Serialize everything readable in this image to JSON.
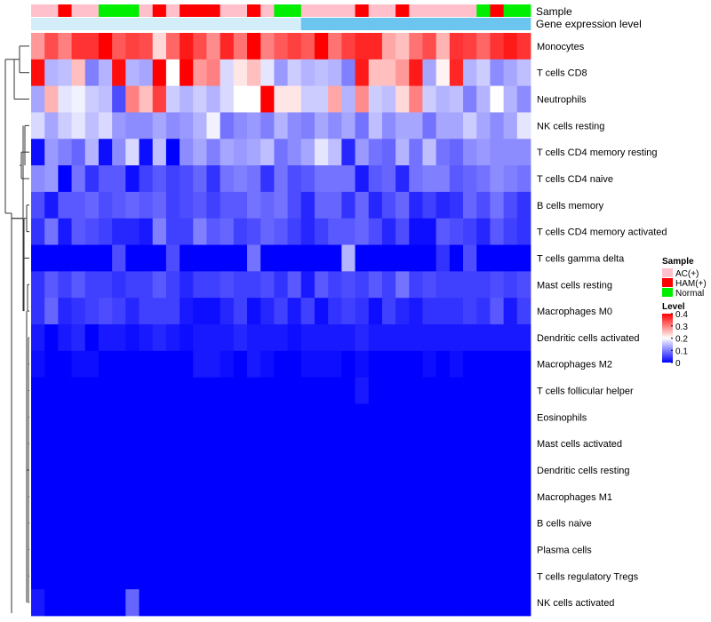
{
  "chart_data": {
    "type": "heatmap",
    "title": "",
    "annotation_tracks": [
      "Sample",
      "Gene expression level"
    ],
    "sample_groups": [
      {
        "name": "AC(+)",
        "color": "#FFC0CB"
      },
      {
        "name": "HAM(+)",
        "color": "#FF0000"
      },
      {
        "name": "Normal",
        "color": "#00EE00"
      }
    ],
    "sample_annotation": [
      0,
      0,
      1,
      0,
      0,
      2,
      2,
      2,
      0,
      1,
      0,
      1,
      1,
      1,
      0,
      0,
      1,
      0,
      2,
      2,
      0,
      0,
      0,
      0,
      1,
      0,
      0,
      1,
      0,
      0,
      0,
      0,
      0,
      2,
      1,
      2,
      2
    ],
    "gene_expression_level": [
      0,
      0,
      0,
      0,
      0,
      0,
      0,
      0,
      0,
      0,
      0,
      0,
      0,
      0,
      0,
      0,
      0,
      0,
      0,
      0,
      1,
      1,
      1,
      1,
      1,
      1,
      1,
      1,
      1,
      1,
      1,
      1,
      1,
      1,
      1,
      1,
      1
    ],
    "gene_expression_colors": [
      "#D4EEF9",
      "#6CC5EE"
    ],
    "rows": [
      "Monocytes",
      "T cells CD8",
      "Neutrophils",
      "NK cells resting",
      "T cells CD4 memory resting",
      "T cells CD4 naive",
      "B cells memory",
      "T cells CD4 memory activated",
      "T cells gamma delta",
      "Mast cells resting",
      "Macrophages M0",
      "Dendritic cells activated",
      "Macrophages M2",
      "T cells follicular helper",
      "Eosinophils",
      "Mast cells activated",
      "Dendritic cells resting",
      "Macrophages M1",
      "B cells naive",
      "Plasma cells",
      "T cells regulatory  Tregs",
      "NK cells activated"
    ],
    "values": [
      [
        0.28,
        0.34,
        0.3,
        0.36,
        0.36,
        0.4,
        0.33,
        0.35,
        0.34,
        0.23,
        0.32,
        0.38,
        0.34,
        0.29,
        0.37,
        0.31,
        0.4,
        0.3,
        0.33,
        0.35,
        0.33,
        0.41,
        0.31,
        0.35,
        0.37,
        0.37,
        0.27,
        0.25,
        0.31,
        0.34,
        0.26,
        0.36,
        0.35,
        0.32,
        0.36,
        0.38,
        0.36
      ],
      [
        0.39,
        0.14,
        0.15,
        0.25,
        0.1,
        0.14,
        0.39,
        0.14,
        0.13,
        0.41,
        0.2,
        0.4,
        0.28,
        0.3,
        0.17,
        0.22,
        0.25,
        0.18,
        0.12,
        0.16,
        0.14,
        0.15,
        0.14,
        0.1,
        0.38,
        0.25,
        0.25,
        0.28,
        0.38,
        0.13,
        0.21,
        0.37,
        0.14,
        0.16,
        0.11,
        0.13,
        0.15
      ],
      [
        0.13,
        0.26,
        0.18,
        0.19,
        0.16,
        0.15,
        0.06,
        0.3,
        0.25,
        0.35,
        0.16,
        0.14,
        0.16,
        0.14,
        0.17,
        0.2,
        0.2,
        0.42,
        0.22,
        0.22,
        0.16,
        0.16,
        0.27,
        0.14,
        0.29,
        0.16,
        0.15,
        0.23,
        0.3,
        0.16,
        0.14,
        0.15,
        0.1,
        0.14,
        0.2,
        0.14,
        0.11
      ],
      [
        0.17,
        0.13,
        0.16,
        0.18,
        0.15,
        0.17,
        0.12,
        0.11,
        0.11,
        0.13,
        0.11,
        0.12,
        0.14,
        0.19,
        0.09,
        0.11,
        0.12,
        0.1,
        0.14,
        0.11,
        0.1,
        0.13,
        0.11,
        0.13,
        0.09,
        0.15,
        0.11,
        0.13,
        0.13,
        0.09,
        0.13,
        0.13,
        0.16,
        0.13,
        0.11,
        0.13,
        0.18
      ],
      [
        0.01,
        0.12,
        0.1,
        0.08,
        0.14,
        0.01,
        0.11,
        0.17,
        0.01,
        0.15,
        0.0,
        0.11,
        0.13,
        0.1,
        0.13,
        0.12,
        0.13,
        0.15,
        0.09,
        0.11,
        0.13,
        0.18,
        0.15,
        0.03,
        0.12,
        0.09,
        0.08,
        0.14,
        0.09,
        0.15,
        0.09,
        0.08,
        0.11,
        0.12,
        0.11,
        0.11,
        0.11
      ],
      [
        0.11,
        0.12,
        0.0,
        0.09,
        0.04,
        0.07,
        0.07,
        0.01,
        0.05,
        0.07,
        0.05,
        0.06,
        0.08,
        0.04,
        0.09,
        0.1,
        0.09,
        0.04,
        0.09,
        0.06,
        0.07,
        0.09,
        0.09,
        0.09,
        0.02,
        0.07,
        0.08,
        0.03,
        0.09,
        0.1,
        0.1,
        0.07,
        0.08,
        0.09,
        0.11,
        0.1,
        0.09
      ],
      [
        0.06,
        0.02,
        0.07,
        0.07,
        0.08,
        0.06,
        0.07,
        0.08,
        0.07,
        0.08,
        0.05,
        0.06,
        0.07,
        0.05,
        0.07,
        0.07,
        0.09,
        0.08,
        0.09,
        0.06,
        0.03,
        0.08,
        0.08,
        0.04,
        0.08,
        0.03,
        0.06,
        0.08,
        0.03,
        0.05,
        0.03,
        0.04,
        0.08,
        0.06,
        0.09,
        0.06,
        0.04
      ],
      [
        0.04,
        0.09,
        0.02,
        0.07,
        0.06,
        0.05,
        0.03,
        0.03,
        0.02,
        0.1,
        0.05,
        0.05,
        0.1,
        0.07,
        0.08,
        0.05,
        0.06,
        0.08,
        0.07,
        0.05,
        0.03,
        0.05,
        0.07,
        0.07,
        0.08,
        0.06,
        0.03,
        0.06,
        0.01,
        0.01,
        0.07,
        0.06,
        0.05,
        0.03,
        0.07,
        0.05,
        0.04
      ],
      [
        0.0,
        0.0,
        0.0,
        0.0,
        0.0,
        0.0,
        0.06,
        0.0,
        0.0,
        0.0,
        0.06,
        0.0,
        0.0,
        0.0,
        0.0,
        0.0,
        0.09,
        0.0,
        0.0,
        0.0,
        0.0,
        0.0,
        0.0,
        0.14,
        0.0,
        0.0,
        0.0,
        0.0,
        0.0,
        0.0,
        0.04,
        0.0,
        0.06,
        0.0,
        0.0,
        0.0,
        0.0
      ],
      [
        0.04,
        0.07,
        0.05,
        0.07,
        0.05,
        0.05,
        0.04,
        0.05,
        0.05,
        0.07,
        0.05,
        0.03,
        0.05,
        0.05,
        0.06,
        0.05,
        0.05,
        0.06,
        0.04,
        0.07,
        0.02,
        0.07,
        0.05,
        0.06,
        0.05,
        0.07,
        0.05,
        0.09,
        0.05,
        0.06,
        0.05,
        0.05,
        0.05,
        0.05,
        0.06,
        0.05,
        0.06
      ],
      [
        0.04,
        0.08,
        0.03,
        0.04,
        0.05,
        0.06,
        0.05,
        0.03,
        0.05,
        0.05,
        0.05,
        0.02,
        0.01,
        0.01,
        0.03,
        0.05,
        0.01,
        0.03,
        0.05,
        0.02,
        0.05,
        0.01,
        0.04,
        0.05,
        0.04,
        0.01,
        0.05,
        0.03,
        0.02,
        0.04,
        0.04,
        0.04,
        0.05,
        0.04,
        0.07,
        0.02,
        0.05
      ],
      [
        0.02,
        0.0,
        0.02,
        0.03,
        0.0,
        0.02,
        0.02,
        0.01,
        0.02,
        0.03,
        0.02,
        0.01,
        0.02,
        0.02,
        0.02,
        0.03,
        0.02,
        0.02,
        0.02,
        0.01,
        0.02,
        0.02,
        0.02,
        0.02,
        0.03,
        0.02,
        0.02,
        0.02,
        0.02,
        0.02,
        0.02,
        0.02,
        0.02,
        0.02,
        0.02,
        0.02,
        0.02
      ],
      [
        0.01,
        0.0,
        0.0,
        0.01,
        0.01,
        0.0,
        0.0,
        0.0,
        0.0,
        0.0,
        0.0,
        0.0,
        0.02,
        0.02,
        0.01,
        0.0,
        0.02,
        0.01,
        0.0,
        0.0,
        0.01,
        0.01,
        0.01,
        0.0,
        0.01,
        0.0,
        0.0,
        0.0,
        0.0,
        0.01,
        0.0,
        0.01,
        0.0,
        0.0,
        0.0,
        0.0,
        0.0
      ],
      [
        0.0,
        0.0,
        0.0,
        0.0,
        0.0,
        0.0,
        0.0,
        0.0,
        0.0,
        0.0,
        0.0,
        0.0,
        0.0,
        0.0,
        0.0,
        0.0,
        0.0,
        0.0,
        0.0,
        0.0,
        0.0,
        0.0,
        0.0,
        0.0,
        0.02,
        0.0,
        0.0,
        0.0,
        0.0,
        0.0,
        0.0,
        0.0,
        0.0,
        0.0,
        0.0,
        0.0,
        0.0
      ],
      [
        0.0,
        0.0,
        0.0,
        0.0,
        0.0,
        0.0,
        0.0,
        0.0,
        0.0,
        0.0,
        0.0,
        0.0,
        0.0,
        0.0,
        0.0,
        0.0,
        0.0,
        0.0,
        0.0,
        0.0,
        0.0,
        0.0,
        0.0,
        0.0,
        0.0,
        0.0,
        0.0,
        0.0,
        0.0,
        0.0,
        0.0,
        0.0,
        0.0,
        0.0,
        0.0,
        0.0,
        0.0
      ],
      [
        0.0,
        0.0,
        0.0,
        0.0,
        0.0,
        0.0,
        0.0,
        0.0,
        0.0,
        0.0,
        0.0,
        0.0,
        0.0,
        0.0,
        0.0,
        0.0,
        0.0,
        0.0,
        0.0,
        0.0,
        0.0,
        0.0,
        0.0,
        0.0,
        0.0,
        0.0,
        0.0,
        0.0,
        0.0,
        0.0,
        0.0,
        0.0,
        0.0,
        0.0,
        0.0,
        0.0,
        0.0
      ],
      [
        0.0,
        0.0,
        0.0,
        0.0,
        0.0,
        0.0,
        0.0,
        0.0,
        0.0,
        0.0,
        0.0,
        0.0,
        0.0,
        0.0,
        0.0,
        0.0,
        0.0,
        0.0,
        0.0,
        0.0,
        0.0,
        0.0,
        0.0,
        0.0,
        0.0,
        0.0,
        0.0,
        0.0,
        0.0,
        0.0,
        0.0,
        0.0,
        0.0,
        0.0,
        0.0,
        0.0,
        0.0
      ],
      [
        0.0,
        0.0,
        0.0,
        0.0,
        0.0,
        0.0,
        0.0,
        0.0,
        0.0,
        0.0,
        0.0,
        0.0,
        0.0,
        0.0,
        0.0,
        0.0,
        0.0,
        0.0,
        0.0,
        0.0,
        0.0,
        0.0,
        0.0,
        0.0,
        0.0,
        0.0,
        0.0,
        0.0,
        0.0,
        0.0,
        0.0,
        0.0,
        0.0,
        0.0,
        0.0,
        0.0,
        0.0
      ],
      [
        0.0,
        0.0,
        0.0,
        0.0,
        0.0,
        0.0,
        0.0,
        0.0,
        0.0,
        0.0,
        0.0,
        0.0,
        0.0,
        0.0,
        0.0,
        0.0,
        0.0,
        0.0,
        0.0,
        0.0,
        0.0,
        0.0,
        0.0,
        0.0,
        0.0,
        0.0,
        0.0,
        0.0,
        0.0,
        0.0,
        0.0,
        0.0,
        0.0,
        0.0,
        0.0,
        0.0,
        0.0
      ],
      [
        0.0,
        0.0,
        0.0,
        0.0,
        0.0,
        0.0,
        0.0,
        0.0,
        0.0,
        0.0,
        0.0,
        0.0,
        0.0,
        0.0,
        0.0,
        0.0,
        0.0,
        0.0,
        0.0,
        0.0,
        0.0,
        0.0,
        0.0,
        0.0,
        0.0,
        0.0,
        0.0,
        0.0,
        0.0,
        0.0,
        0.0,
        0.0,
        0.0,
        0.0,
        0.0,
        0.0,
        0.0
      ],
      [
        0.0,
        0.0,
        0.0,
        0.0,
        0.0,
        0.0,
        0.0,
        0.0,
        0.0,
        0.0,
        0.0,
        0.0,
        0.0,
        0.0,
        0.0,
        0.0,
        0.0,
        0.0,
        0.0,
        0.0,
        0.0,
        0.0,
        0.0,
        0.0,
        0.0,
        0.0,
        0.0,
        0.0,
        0.0,
        0.0,
        0.0,
        0.0,
        0.0,
        0.0,
        0.0,
        0.0,
        0.0
      ],
      [
        0.02,
        0.0,
        0.0,
        0.0,
        0.0,
        0.0,
        0.0,
        0.08,
        0.0,
        0.0,
        0.0,
        0.0,
        0.0,
        0.0,
        0.0,
        0.0,
        0.0,
        0.0,
        0.0,
        0.0,
        0.0,
        0.0,
        0.0,
        0.0,
        0.0,
        0.0,
        0.0,
        0.0,
        0.0,
        0.0,
        0.0,
        0.0,
        0.0,
        0.0,
        0.0,
        0.0,
        0.0
      ]
    ],
    "colorscale": {
      "min": 0,
      "mid": 0.2,
      "max": 0.4,
      "low": "#0000FF",
      "midColor": "#FFFFFF",
      "high": "#FF0000"
    },
    "legend_sample_title": "Sample",
    "legend_level_title": "Level",
    "legend_level_ticks": [
      "0.4",
      "0.3",
      "0.2",
      "0.1",
      "0"
    ],
    "legend_level_values": [
      0.4,
      0.3,
      0.2,
      0.1,
      0.0
    ],
    "dendrogram": true
  }
}
